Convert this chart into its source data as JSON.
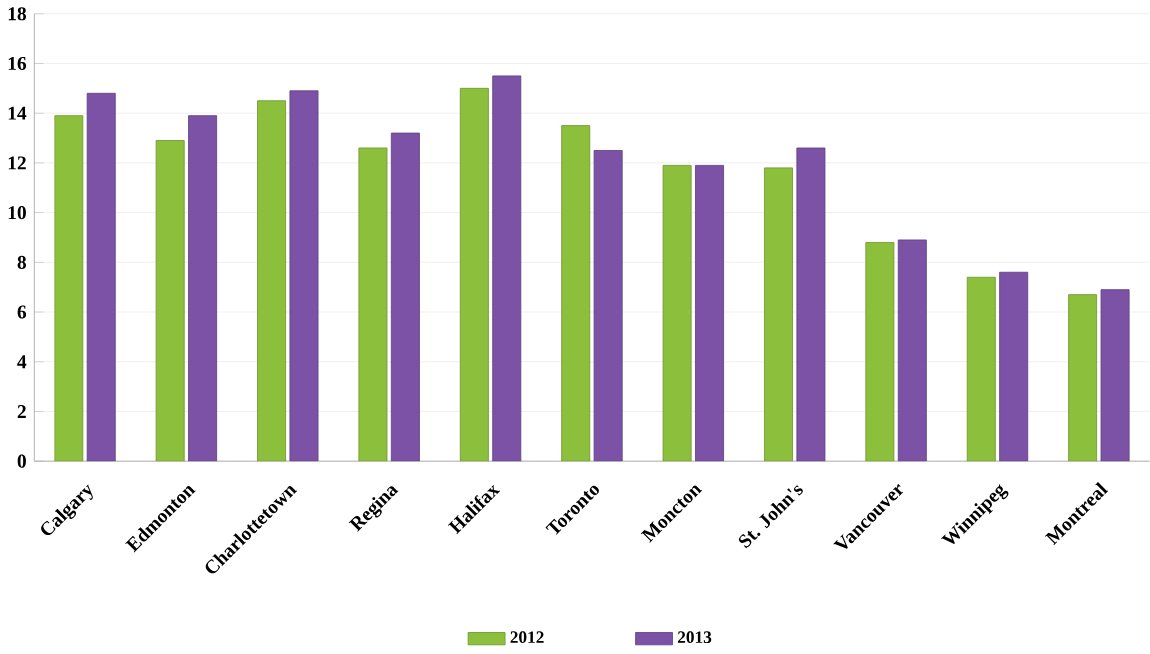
{
  "chart_data": {
    "type": "bar",
    "categories": [
      "Calgary",
      "Edmonton",
      "Charlottetown",
      "Regina",
      "Halifax",
      "Toronto",
      "Moncton",
      "St. John's",
      "Vancouver",
      "Winnipeg",
      "Montreal"
    ],
    "series": [
      {
        "name": "2012",
        "color": "#8cbf3c",
        "values": [
          13.9,
          12.9,
          14.5,
          12.6,
          15.0,
          13.5,
          11.9,
          11.8,
          8.8,
          7.4,
          6.7
        ]
      },
      {
        "name": "2013",
        "color": "#7b52a6",
        "values": [
          14.8,
          13.9,
          14.9,
          13.2,
          15.5,
          12.5,
          11.9,
          12.6,
          8.9,
          7.6,
          6.9
        ]
      }
    ],
    "ylim": [
      0,
      18
    ],
    "yticks": [
      0,
      2,
      4,
      6,
      8,
      10,
      12,
      14,
      16,
      18
    ],
    "grid": "y",
    "legend": "bottom"
  }
}
